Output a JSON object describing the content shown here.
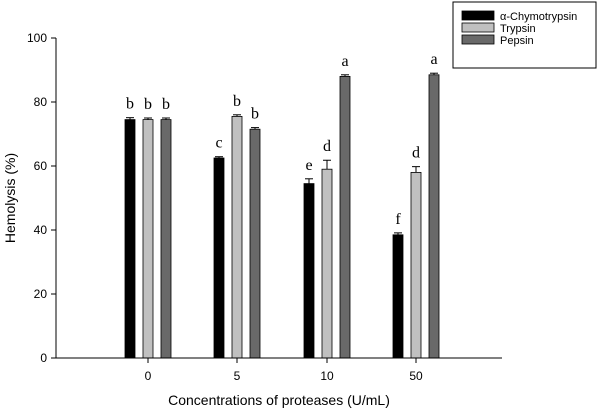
{
  "chart_data": {
    "type": "bar",
    "title": "",
    "xlabel": "Concentrations of proteases (U/mL)",
    "ylabel": "Hemolysis (%)",
    "ylim": [
      0,
      100
    ],
    "yticks": [
      0,
      20,
      40,
      60,
      80,
      100
    ],
    "categories": [
      "0",
      "5",
      "10",
      "50"
    ],
    "legend_position": "top-right",
    "series": [
      {
        "name": "α-Chymotrypsin",
        "color": "#000000",
        "values": [
          74.5,
          62.5,
          54.5,
          38.5
        ],
        "errors": [
          0.6,
          0.4,
          1.5,
          0.6
        ],
        "labels": [
          "b",
          "c",
          "e",
          "f"
        ]
      },
      {
        "name": "Trypsin",
        "color": "#c0c0c0",
        "values": [
          74.5,
          75.5,
          59.0,
          58.0
        ],
        "errors": [
          0.5,
          0.5,
          2.8,
          1.8
        ],
        "labels": [
          "b",
          "b",
          "d",
          "d"
        ]
      },
      {
        "name": "Pepsin",
        "color": "#696969",
        "values": [
          74.5,
          71.5,
          88.0,
          88.5
        ],
        "errors": [
          0.5,
          0.5,
          0.5,
          0.5
        ],
        "labels": [
          "b",
          "b",
          "a",
          "a"
        ]
      }
    ]
  }
}
